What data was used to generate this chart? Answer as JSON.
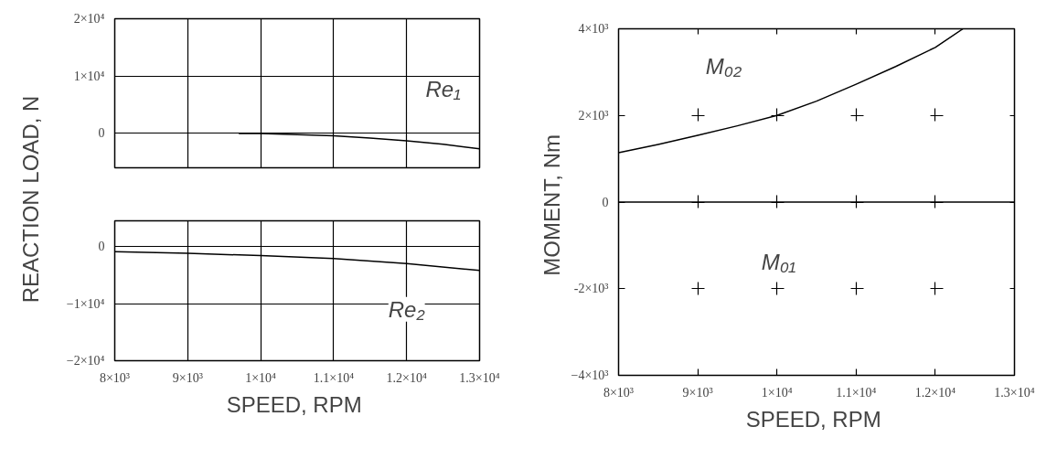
{
  "chart_data": [
    {
      "type": "line",
      "ylabel": "REACTION LOAD, N",
      "tick_labels": "y",
      "grid": true,
      "xlim": [
        8000,
        13000
      ],
      "ylim": [
        -6000,
        20000
      ],
      "xticks": [
        8000,
        9000,
        10000,
        11000,
        12000,
        13000
      ],
      "yticks": [
        {
          "value": 0,
          "label": "0"
        },
        {
          "value": 10000,
          "label": "1×10⁴"
        },
        {
          "value": 20000,
          "label": "2×10⁴"
        }
      ],
      "series": [
        {
          "name": "Re₁",
          "color": "#000000",
          "x": [
            9700,
            10000,
            10500,
            11000,
            11500,
            12000,
            12500,
            13000
          ],
          "values": [
            0,
            0,
            -200,
            -400,
            -800,
            -1300,
            -1900,
            -2700
          ]
        }
      ]
    },
    {
      "type": "line",
      "xlabel": "SPEED,  RPM",
      "grid": true,
      "xlim": [
        8000,
        13000
      ],
      "ylim": [
        -20000,
        4500
      ],
      "xticks": [
        {
          "value": 8000,
          "label": "8×10³"
        },
        {
          "value": 9000,
          "label": "9×10³"
        },
        {
          "value": 10000,
          "label": "1×10⁴"
        },
        {
          "value": 11000,
          "label": "1.1×10⁴"
        },
        {
          "value": 12000,
          "label": "1.2×10⁴"
        },
        {
          "value": 13000,
          "label": "1.3×10⁴"
        }
      ],
      "yticks": [
        {
          "value": 0,
          "label": "0"
        },
        {
          "value": -10000,
          "label": "−1×10⁴"
        },
        {
          "value": -20000,
          "label": "−2×10⁴"
        }
      ],
      "series": [
        {
          "name": "Re₂",
          "color": "#000000",
          "x": [
            8000,
            9000,
            10000,
            11000,
            12000,
            13000
          ],
          "values": [
            -900,
            -1200,
            -1600,
            -2100,
            -3000,
            -4200
          ]
        }
      ]
    },
    {
      "type": "line",
      "xlabel": "SPEED,  RPM",
      "ylabel": "MOMENT,  Nm",
      "grid": true,
      "xlim": [
        8000,
        13000
      ],
      "ylim": [
        -4000,
        4000
      ],
      "xticks": [
        {
          "value": 8000,
          "label": "8×10³"
        },
        {
          "value": 9000,
          "label": "9×10³"
        },
        {
          "value": 10000,
          "label": "1×10⁴"
        },
        {
          "value": 11000,
          "label": "1.1×10⁴"
        },
        {
          "value": 12000,
          "label": "1.2×10⁴"
        },
        {
          "value": 13000,
          "label": "1.3×10⁴"
        }
      ],
      "yticks": [
        {
          "value": -4000,
          "label": "−4×10³"
        },
        {
          "value": -2000,
          "label": "-2×10³"
        },
        {
          "value": 0,
          "label": "0"
        },
        {
          "value": 2000,
          "label": "2×10³"
        },
        {
          "value": 4000,
          "label": "4×10³"
        }
      ],
      "series": [
        {
          "name": "M₀₂",
          "color": "#000000",
          "x": [
            8000,
            8500,
            9000,
            9500,
            10000,
            10500,
            11000,
            11500,
            12000,
            12350
          ],
          "values": [
            1140,
            1330,
            1540,
            1760,
            2000,
            2330,
            2720,
            3130,
            3570,
            4000
          ]
        },
        {
          "name": "M₀₁",
          "color": "#000000",
          "x": [
            8000,
            13000
          ],
          "values": [
            0,
            0
          ]
        }
      ]
    }
  ]
}
